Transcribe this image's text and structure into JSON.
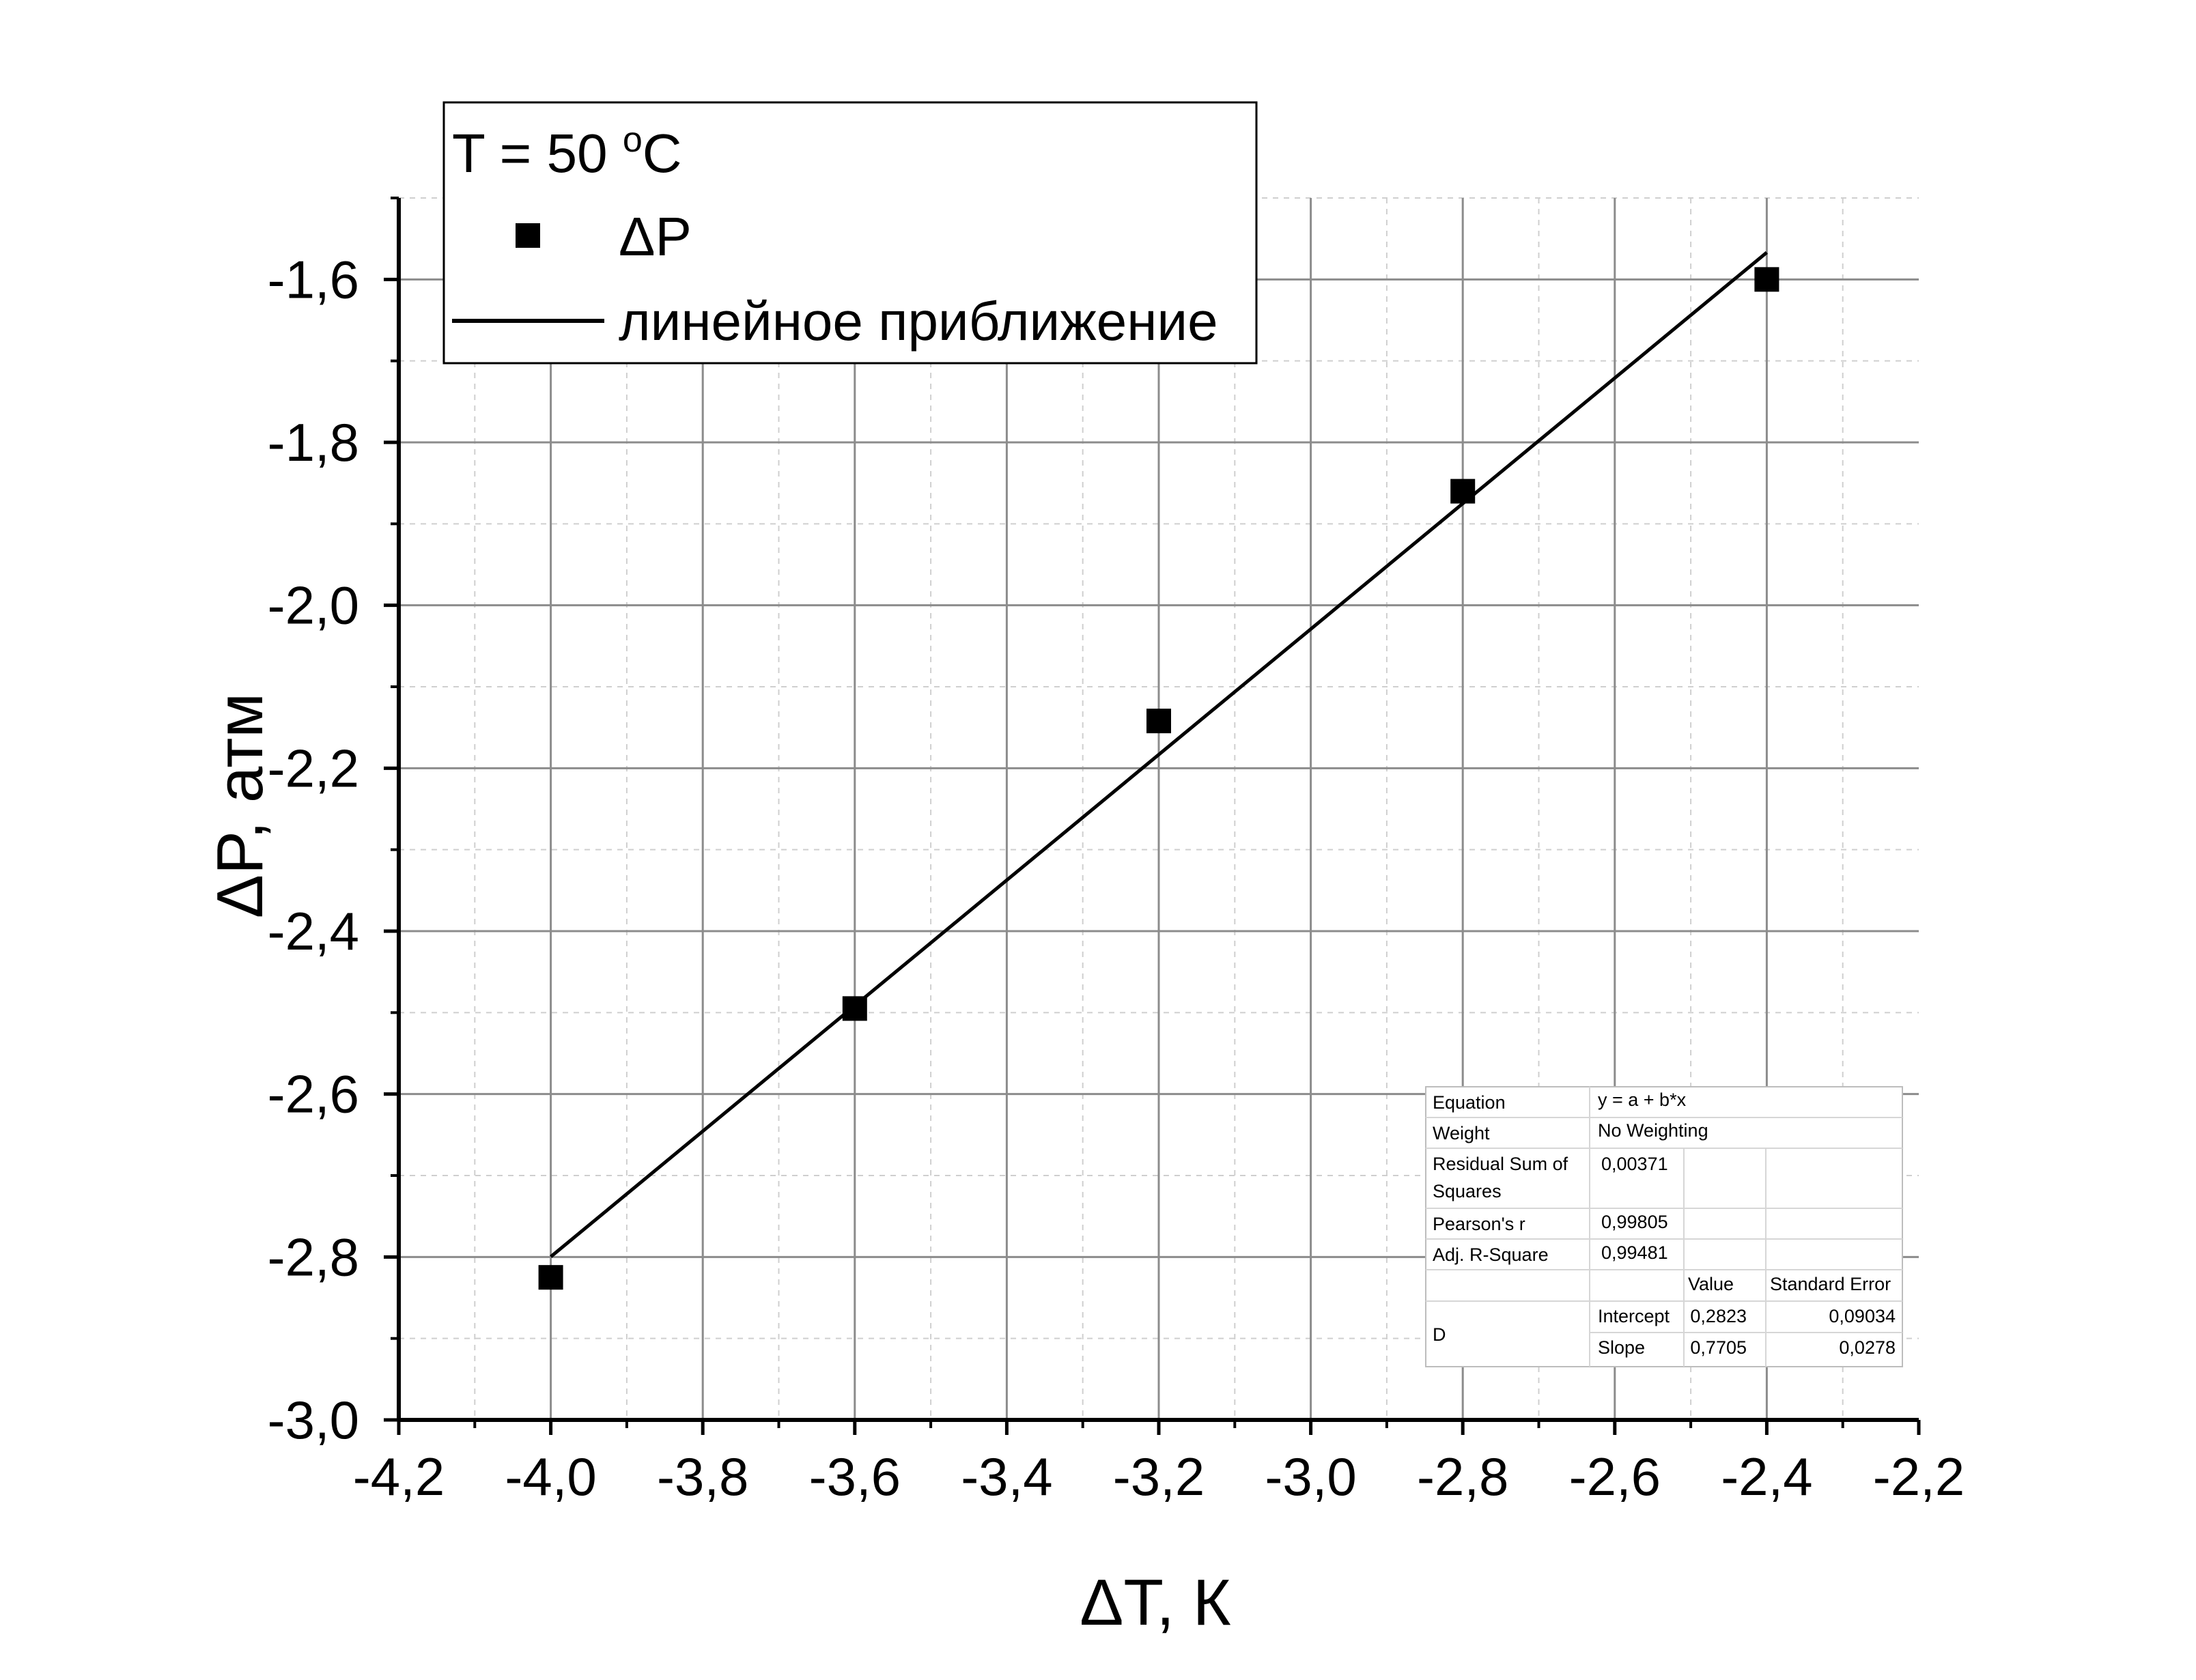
{
  "chart_data": {
    "type": "scatter",
    "xlabel": "ΔT, К",
    "ylabel": "ΔP, атм",
    "xlim": [
      -4.2,
      -2.2
    ],
    "ylim": [
      -3.0,
      -1.5
    ],
    "x_major_ticks": [
      -4.2,
      -4.0,
      -3.8,
      -3.6,
      -3.4,
      -3.2,
      -3.0,
      -2.8,
      -2.6,
      -2.4,
      -2.2
    ],
    "x_tick_labels": [
      "-4,2",
      "-4,0",
      "-3,8",
      "-3,6",
      "-3,4",
      "-3,2",
      "-3,0",
      "-2,8",
      "-2,6",
      "-2,4",
      "-2,2"
    ],
    "y_major_ticks": [
      -3.0,
      -2.8,
      -2.6,
      -2.4,
      -2.2,
      -2.0,
      -1.8,
      -1.6
    ],
    "y_tick_labels": [
      "-3,0",
      "-2,8",
      "-2,6",
      "-2,4",
      "-2,2",
      "-2,0",
      "-1,8",
      "-1,6"
    ],
    "grid": true,
    "legend_position": "top-left",
    "series": [
      {
        "name": "ΔP",
        "kind": "scatter",
        "marker": "square",
        "color": "#000000",
        "x": [
          -4.0,
          -3.6,
          -3.2,
          -2.8,
          -2.4
        ],
        "y": [
          -2.825,
          -2.495,
          -2.142,
          -1.86,
          -1.6
        ]
      },
      {
        "name": "линейное приближение",
        "kind": "line",
        "color": "#000000",
        "x": [
          -4.0,
          -2.4
        ],
        "y": [
          -2.7997,
          -1.5669
        ]
      }
    ],
    "legend_title": {
      "prefix": "T = 50 ",
      "sup": "o",
      "suffix": "C"
    },
    "stats_table": {
      "rows": [
        {
          "label": "Equation",
          "value": "y = a + b*x"
        },
        {
          "label": "Weight",
          "value": "No Weighting"
        },
        {
          "label": "Residual Sum of",
          "label2": "Squares",
          "value": "0,00371"
        },
        {
          "label": "Pearson's r",
          "value": "0,99805"
        },
        {
          "label": "Adj. R-Square",
          "value": "0,99481"
        }
      ],
      "col_value": "Value",
      "col_error": "Standard Error",
      "group_label": "D",
      "params": [
        {
          "name": "Intercept",
          "value": "0,2823",
          "error": "0,09034"
        },
        {
          "name": "Slope",
          "value": "0,7705",
          "error": "0,0278"
        }
      ]
    }
  }
}
